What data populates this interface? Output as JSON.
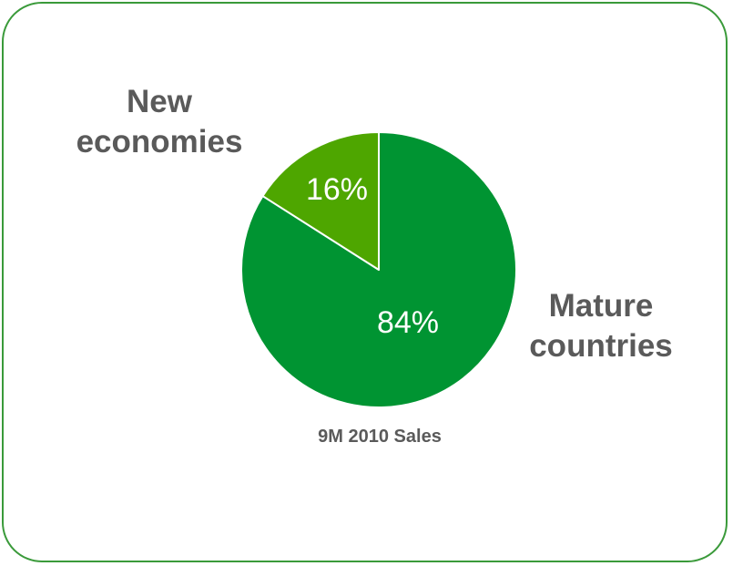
{
  "chart_data": {
    "type": "pie",
    "categories": [
      "Mature countries",
      "New economies"
    ],
    "values": [
      84,
      16
    ],
    "value_labels": [
      "84%",
      "16%"
    ],
    "category_labels": {
      "new_line1": "New",
      "new_line2": "economies",
      "mature_line1": "Mature",
      "mature_line2": "countries"
    },
    "caption": "9M 2010 Sales",
    "colors": {
      "mature": "#009432",
      "new": "#4ea600",
      "separator": "#ffffff",
      "frame": "#3a9a3a",
      "text": "#5a5a5a"
    },
    "start_angle": "12 o'clock, counterclockwise for new economies"
  }
}
